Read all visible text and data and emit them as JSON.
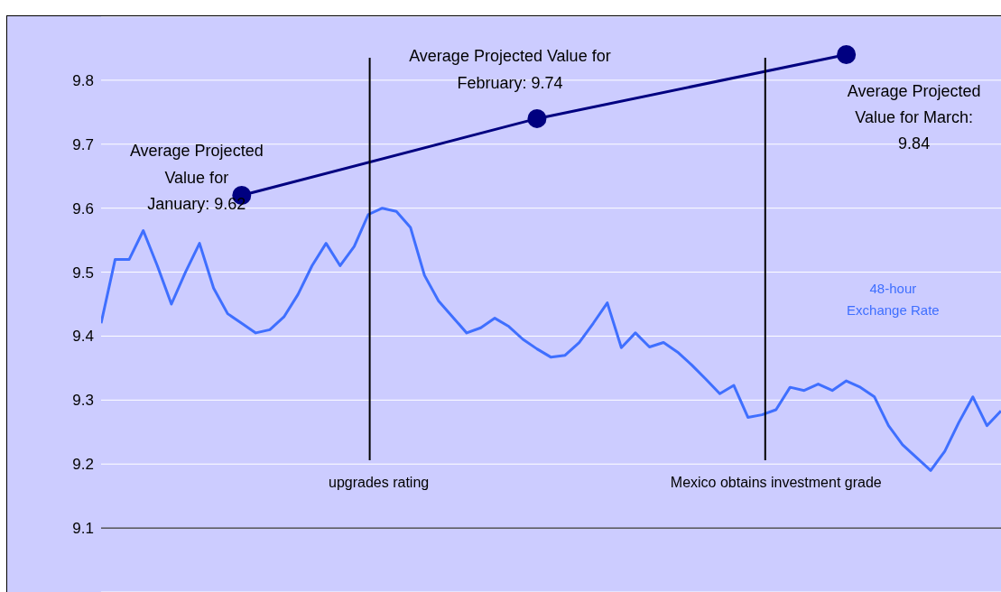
{
  "chart_data": {
    "type": "line",
    "categories": [
      null,
      null,
      null,
      null,
      null,
      null,
      null,
      null,
      null,
      null,
      null,
      null,
      null,
      null,
      null,
      null,
      null,
      null,
      null,
      null,
      null,
      null,
      null,
      null,
      null,
      null,
      null,
      null,
      null,
      null,
      null,
      null,
      null,
      null,
      null,
      null,
      null,
      null,
      null,
      null,
      null,
      null,
      null,
      null,
      null,
      null,
      null,
      null,
      null,
      null,
      null,
      null,
      null,
      null,
      null,
      null,
      null,
      null,
      null,
      null,
      null,
      null,
      null,
      null,
      null
    ],
    "ylim": [
      9.0,
      9.9
    ],
    "yticks": [
      9.1,
      9.2,
      9.3,
      9.4,
      9.5,
      9.6,
      9.7,
      9.8
    ],
    "tick_labels": "y",
    "grid": "y",
    "legend": false,
    "marker": "none",
    "series": [
      {
        "name": "48-hour Exchange Rate",
        "color": "#3f6fff",
        "values": [
          9.42,
          9.52,
          9.52,
          9.565,
          9.51,
          9.45,
          9.5,
          9.545,
          9.475,
          9.435,
          9.42,
          9.405,
          9.41,
          9.43,
          9.465,
          9.51,
          9.545,
          9.51,
          9.54,
          9.59,
          9.6,
          9.595,
          9.57,
          9.495,
          9.455,
          9.43,
          9.405,
          9.413,
          9.428,
          9.415,
          9.395,
          9.38,
          9.367,
          9.37,
          9.39,
          9.42,
          9.452,
          9.382,
          9.405,
          9.383,
          9.39,
          9.375,
          9.355,
          9.333,
          9.31,
          9.323,
          9.273,
          9.277,
          9.285,
          9.32,
          9.315,
          9.325,
          9.315,
          9.33,
          9.32,
          9.305,
          9.26,
          9.23,
          9.21,
          9.19,
          9.22,
          9.265,
          9.305,
          9.26,
          9.283
        ]
      },
      {
        "color": "#000080",
        "marker": "circle",
        "values": [
          null,
          null,
          null,
          null,
          null,
          null,
          null,
          null,
          null,
          null,
          9.62,
          null,
          null,
          null,
          null,
          null,
          null,
          null,
          null,
          null,
          null,
          null,
          null,
          null,
          null,
          null,
          null,
          null,
          null,
          null,
          null,
          9.74,
          null,
          null,
          null,
          null,
          null,
          null,
          null,
          null,
          null,
          null,
          null,
          null,
          null,
          null,
          null,
          null,
          null,
          null,
          null,
          null,
          null,
          9.84,
          null,
          null,
          null,
          null,
          null,
          null,
          null,
          null,
          null,
          null,
          null
        ]
      }
    ],
    "ref_lines": [
      {
        "axis": "x",
        "label": "upgrades rating",
        "color": "#000000"
      },
      {
        "axis": "x",
        "label": "Mexico obtains investment grade",
        "color": "#000000"
      },
      {
        "axis": "y",
        "value": 9.1,
        "color": "#000000"
      }
    ],
    "annotations": [
      "Average Projected Value for January: 9.62",
      "Average Projected Value for February: 9.74",
      "Average Projected Value for March: 9.84"
    ]
  }
}
